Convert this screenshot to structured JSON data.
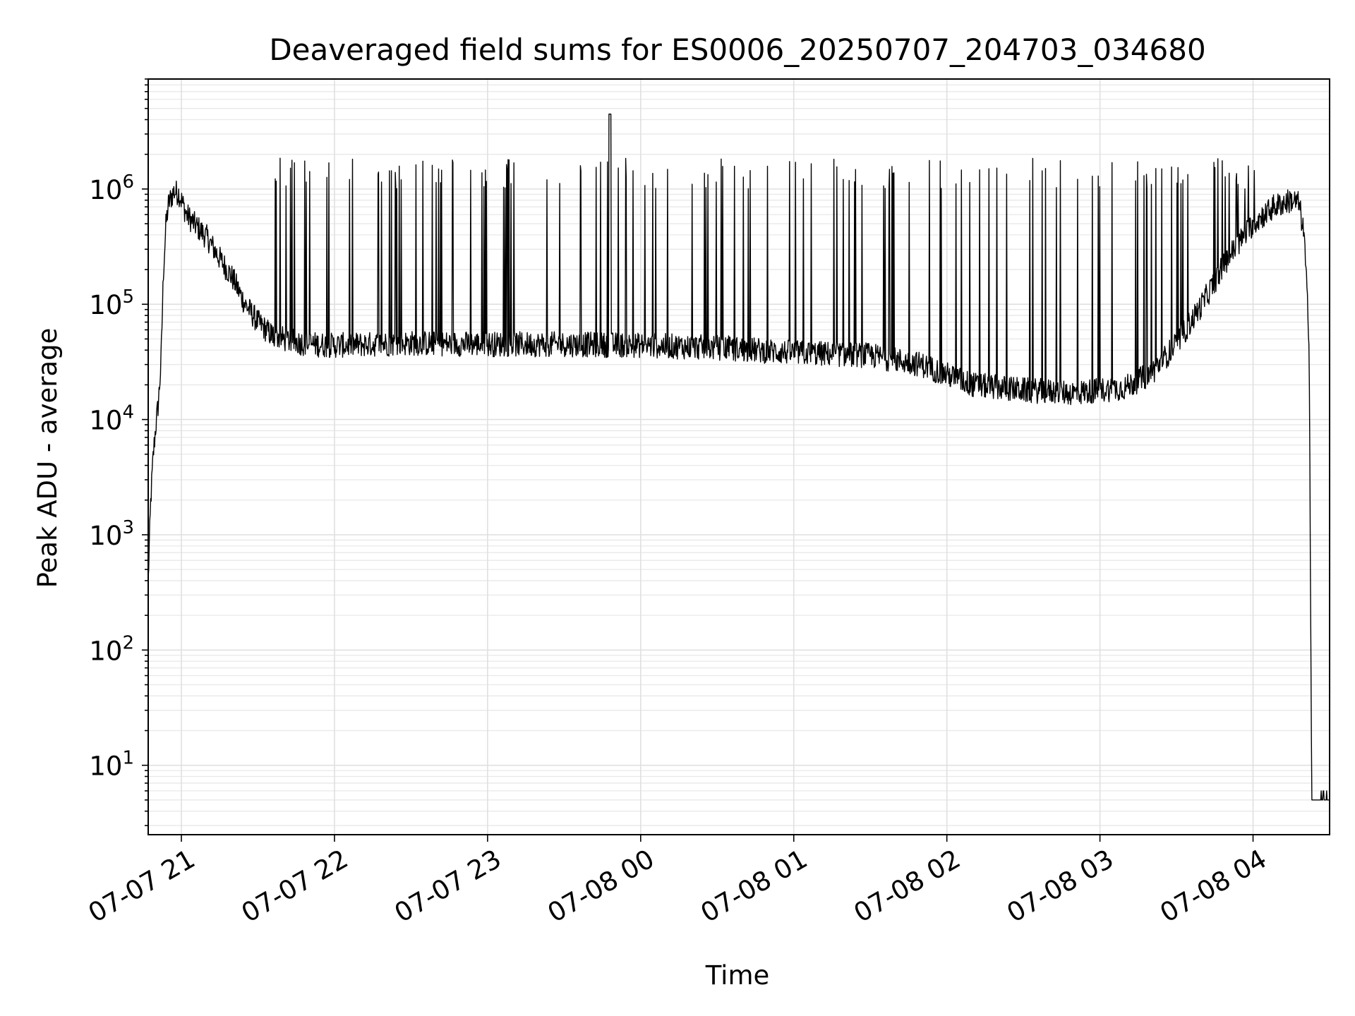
{
  "chart_data": {
    "type": "line",
    "title": "Deaveraged field sums for ES0006_20250707_204703_034680",
    "xlabel": "Time",
    "ylabel": "Peak ADU - average",
    "x_ticks": [
      "07-07 21",
      "07-07 22",
      "07-07 23",
      "07-08 00",
      "07-08 01",
      "07-08 02",
      "07-08 03",
      "07-08 04"
    ],
    "y_tick_exponents": [
      "1",
      "2",
      "3",
      "4",
      "5",
      "6"
    ],
    "y_tick_base": "10",
    "xlim": [
      "2025-07-07 20:47",
      "2025-07-08 04:30"
    ],
    "ylim": [
      2.5,
      9000000
    ],
    "y_scale": "log",
    "grid": true,
    "line_color": "#000000",
    "series": [
      {
        "x": [
          "2025-07-07 20:47",
          "2025-07-07 20:48",
          "2025-07-07 20:49",
          "2025-07-07 20:50",
          "2025-07-07 20:51",
          "2025-07-07 20:52",
          "2025-07-07 20:53",
          "2025-07-07 20:54",
          "2025-07-07 20:55",
          "2025-07-07 20:57",
          "2025-07-07 20:59",
          "2025-07-07 21:00",
          "2025-07-07 21:02",
          "2025-07-07 21:05",
          "2025-07-07 21:10",
          "2025-07-07 21:15",
          "2025-07-07 21:20",
          "2025-07-07 21:25",
          "2025-07-07 21:30",
          "2025-07-07 21:35",
          "2025-07-07 21:40",
          "2025-07-07 21:45",
          "2025-07-07 21:50",
          "2025-07-07 22:00",
          "2025-07-07 22:30",
          "2025-07-07 23:00",
          "2025-07-07 23:30",
          "2025-07-08 00:00",
          "2025-07-08 00:30",
          "2025-07-08 01:00",
          "2025-07-08 01:30",
          "2025-07-08 01:50",
          "2025-07-08 02:10",
          "2025-07-08 02:30",
          "2025-07-08 02:50",
          "2025-07-08 03:10",
          "2025-07-08 03:20",
          "2025-07-08 03:30",
          "2025-07-08 03:40",
          "2025-07-08 03:50",
          "2025-07-08 04:00",
          "2025-07-08 04:08",
          "2025-07-08 04:15",
          "2025-07-08 04:18",
          "2025-07-08 04:20",
          "2025-07-08 04:22",
          "2025-07-08 04:23",
          "2025-07-08 04:30"
        ],
        "y": [
          400,
          2000,
          5000,
          9000,
          14000,
          30000,
          200000,
          500000,
          750000,
          950000,
          920000,
          800000,
          600000,
          500000,
          380000,
          250000,
          170000,
          100000,
          70000,
          55000,
          50000,
          47000,
          45000,
          44000,
          46000,
          45000,
          45000,
          44000,
          42000,
          38000,
          36000,
          30000,
          20000,
          18000,
          17000,
          19000,
          25000,
          45000,
          100000,
          250000,
          500000,
          700000,
          800000,
          750000,
          400000,
          50000,
          5,
          5
        ]
      }
    ]
  }
}
